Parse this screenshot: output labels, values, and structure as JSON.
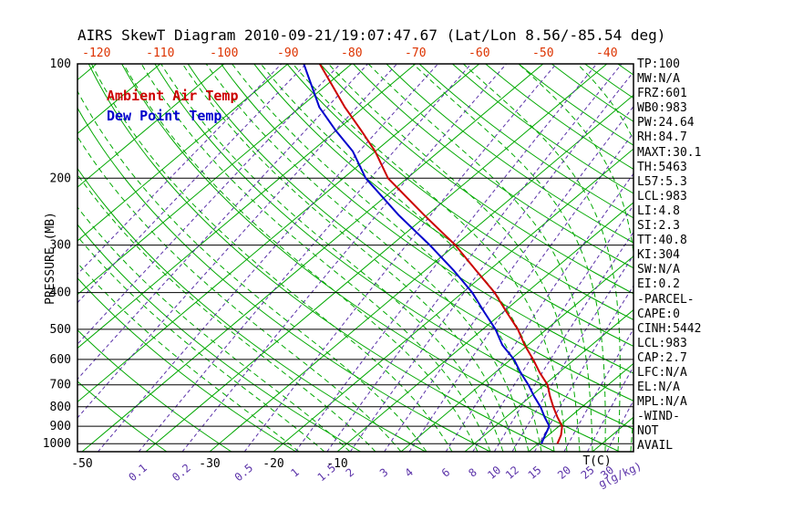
{
  "title": "AIRS SkewT Diagram 2010-09-21/19:07:47.67 (Lat/Lon 8.56/-85.54 deg)",
  "legend": {
    "temp": "Ambient Air Temp",
    "dewpoint": "Dew Point Temp"
  },
  "colors": {
    "green": "#00a800",
    "purple": "#5a31a8",
    "red_label": "#dd3300",
    "temp_line": "#cc0000",
    "dew_line": "#0000cc",
    "black": "#000000"
  },
  "axes": {
    "pressure_label": "PRESSURE (MB)",
    "pressure_ticks": [
      100,
      200,
      300,
      400,
      500,
      600,
      700,
      800,
      900,
      1000
    ],
    "top_temp_ticks": [
      -120,
      -110,
      -100,
      -90,
      -80,
      -70,
      -60,
      -50,
      -40
    ],
    "bottom_temp_ticks": [
      -50,
      -30,
      -20,
      -10
    ],
    "temp_unit_label": "T(C)",
    "mixing_ratio_labels": [
      "0.1",
      "0.2",
      "0.5",
      "1",
      "1.5",
      "2",
      "3",
      "4",
      "6",
      "8",
      "10",
      "12",
      "15",
      "20",
      "25",
      "30"
    ],
    "mixing_ratio_unit_label": "g(g/kg)"
  },
  "stats": [
    "TP:100",
    "MW:N/A",
    "FRZ:601",
    "WB0:983",
    "PW:24.64",
    "RH:84.7",
    "MAXT:30.1",
    "TH:5463",
    "L57:5.3",
    "LCL:983",
    "LI:4.8",
    "SI:2.3",
    "TT:40.8",
    "KI:304",
    "SW:N/A",
    "EI:0.2",
    "-PARCEL-",
    "CAPE:0",
    "CINH:5442",
    "LCL:983",
    "CAP:2.7",
    "LFC:N/A",
    "EL:N/A",
    "MPL:N/A",
    "-WIND-",
    "NOT",
    "AVAIL"
  ],
  "chart_data": {
    "type": "line",
    "title": "AIRS SkewT Diagram 2010-09-21/19:07:47.67 (Lat/Lon 8.56/-85.54 deg)",
    "xlabel": "T(C)",
    "ylabel": "PRESSURE (MB)",
    "y_scale": "log",
    "pressure_range_mb": [
      100,
      1050
    ],
    "grid": "skew-t log-p",
    "legend_position": "top-left-inside",
    "series": [
      {
        "name": "Ambient Air Temp",
        "color": "#cc0000",
        "pressure_mb": [
          1000,
          950,
          900,
          850,
          800,
          750,
          700,
          650,
          600,
          550,
          500,
          450,
          400,
          350,
          300,
          250,
          200,
          170,
          150,
          130,
          100
        ],
        "temp_c": [
          23,
          22,
          20.5,
          18,
          15.5,
          13,
          10.5,
          7,
          3.5,
          -0.5,
          -4.5,
          -9.5,
          -15,
          -22,
          -30,
          -40.5,
          -53,
          -60,
          -66,
          -73,
          -85
        ]
      },
      {
        "name": "Dew Point Temp",
        "color": "#0000cc",
        "pressure_mb": [
          1000,
          950,
          900,
          850,
          800,
          750,
          700,
          650,
          600,
          550,
          500,
          450,
          400,
          350,
          300,
          250,
          200,
          170,
          150,
          130,
          100
        ],
        "temp_c": [
          20.5,
          19.5,
          18.5,
          16,
          13.5,
          10.5,
          7.5,
          4,
          0.5,
          -4,
          -8,
          -13,
          -18.5,
          -25.5,
          -34,
          -44.5,
          -56.5,
          -63.5,
          -70,
          -77,
          -87.5
        ]
      }
    ],
    "background": {
      "isotherms_c": [
        -160,
        -150,
        -140,
        -130,
        -120,
        -110,
        -100,
        -90,
        -80,
        -70,
        -60,
        -50,
        -40,
        -30,
        -20,
        -10,
        0,
        10,
        20,
        30,
        40
      ],
      "dry_adiabats_c": [
        -40,
        -30,
        -20,
        -10,
        0,
        10,
        20,
        30,
        40,
        50,
        60,
        70,
        80,
        90,
        100,
        110,
        120,
        130,
        140,
        150,
        160,
        170,
        180,
        190,
        200
      ],
      "moist_adiabats_c": [
        -16,
        -12,
        -8,
        -4,
        0,
        4,
        8,
        12,
        14,
        16,
        18,
        20,
        22,
        24,
        26,
        28,
        30,
        32,
        34,
        36,
        38,
        40
      ],
      "mixing_ratio_g_per_kg": [
        0.001,
        0.002,
        0.005,
        0.01,
        0.02,
        0.05,
        0.1,
        0.2,
        0.5,
        1,
        1.5,
        2,
        3,
        4,
        6,
        8,
        10,
        12,
        15,
        20,
        25,
        30
      ]
    }
  }
}
